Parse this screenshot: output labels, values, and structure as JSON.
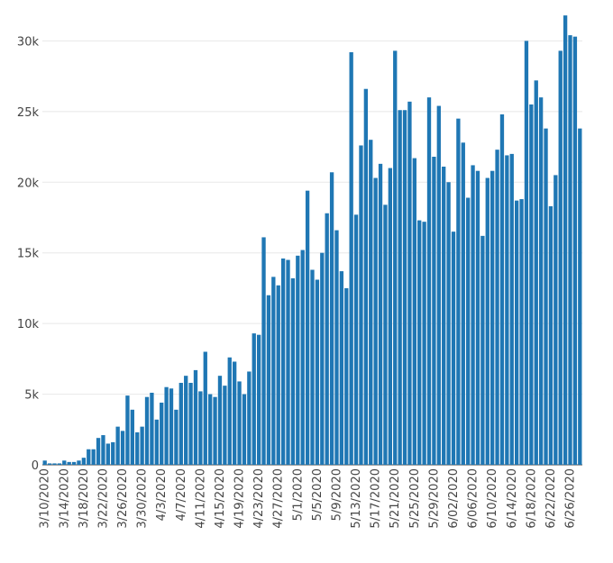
{
  "chart_data": {
    "type": "bar",
    "title": "",
    "xlabel": "",
    "ylabel": "",
    "ylim": [
      0,
      32000
    ],
    "y_ticks": [
      0,
      5000,
      10000,
      15000,
      20000,
      25000,
      30000
    ],
    "y_tick_labels": [
      "0",
      "5k",
      "10k",
      "15k",
      "20k",
      "25k",
      "30k"
    ],
    "x_start": "3/10/2020",
    "x_tick_labels": [
      "3/10/2020",
      "3/14/2020",
      "3/18/2020",
      "3/22/2020",
      "3/26/2020",
      "3/30/2020",
      "4/3/2020",
      "4/7/2020",
      "4/11/2020",
      "4/15/2020",
      "4/19/2020",
      "4/23/2020",
      "4/27/2020",
      "5/1/2020",
      "5/5/2020",
      "5/9/2020",
      "5/13/2020",
      "5/17/2020",
      "5/21/2020",
      "5/25/2020",
      "5/29/2020",
      "6/02/2020",
      "6/06/2020",
      "6/10/2020",
      "6/14/2020",
      "6/18/2020",
      "6/22/2020",
      "6/26/2020"
    ],
    "grid": true,
    "bar_color": "#1f77b4",
    "values": [
      300,
      100,
      100,
      100,
      300,
      200,
      200,
      300,
      500,
      1100,
      1100,
      1900,
      2100,
      1500,
      1600,
      2700,
      2400,
      4900,
      3900,
      2300,
      2700,
      4800,
      5100,
      3200,
      4400,
      5500,
      5400,
      3900,
      5800,
      6300,
      5800,
      6700,
      5200,
      8000,
      5000,
      4800,
      6300,
      5600,
      7600,
      7300,
      5900,
      5000,
      6600,
      9300,
      9200,
      16100,
      12000,
      13300,
      12700,
      14600,
      14500,
      13200,
      14800,
      15200,
      19400,
      13800,
      13100,
      15000,
      17800,
      20700,
      16600,
      13700,
      12500,
      29200,
      17700,
      22600,
      26600,
      23000,
      20300,
      21300,
      18400,
      21000,
      29300,
      25100,
      25100,
      25700,
      21700,
      17300,
      17200,
      26000,
      21800,
      25400,
      21100,
      20000,
      16500,
      24500,
      22800,
      18900,
      21200,
      20800,
      16200,
      20300,
      20800,
      22300,
      24800,
      21900,
      22000,
      18700,
      18800,
      30000,
      25500,
      27200,
      26000,
      23800,
      18300,
      20500,
      29300,
      31800,
      30400,
      30300,
      23800
    ]
  }
}
